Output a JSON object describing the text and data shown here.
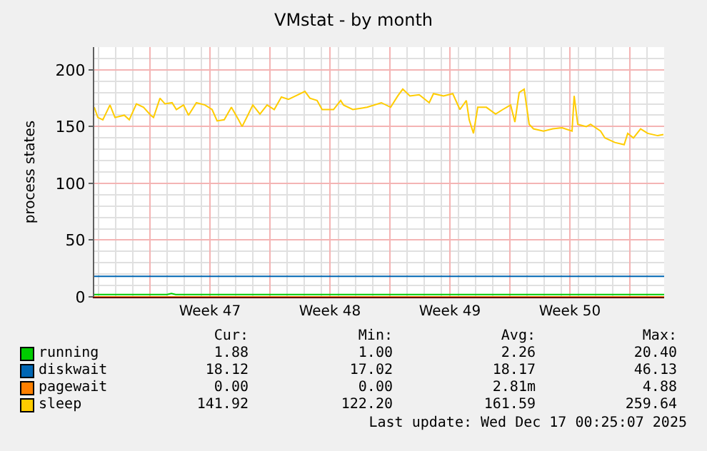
{
  "chart_data": {
    "type": "line",
    "title": "VMstat - by month",
    "ylabel": "process states",
    "xlim": [
      "2025-11-13T18:00",
      "2025-12-17T00:00"
    ],
    "xticks": [
      {
        "value": "2025-11-17",
        "label": null
      },
      {
        "value": "2025-11-20T12:00",
        "label": "Week 47"
      },
      {
        "value": "2025-11-24",
        "label": null
      },
      {
        "value": "2025-11-27T12:00",
        "label": "Week 48"
      },
      {
        "value": "2025-12-01",
        "label": null
      },
      {
        "value": "2025-12-04T12:00",
        "label": "Week 49"
      },
      {
        "value": "2025-12-08",
        "label": null
      },
      {
        "value": "2025-12-11T12:00",
        "label": "Week 50"
      },
      {
        "value": "2025-12-15",
        "label": null
      }
    ],
    "ylim": [
      0,
      220
    ],
    "yticks": [
      0,
      50,
      100,
      150,
      200
    ],
    "grid": true,
    "legend": "bottom",
    "series": [
      {
        "name": "running",
        "color": "#00cc00",
        "x": [
          "2025-11-13T18:00",
          "2025-11-18T00:00",
          "2025-11-18T06:00",
          "2025-11-18T12:00",
          "2025-12-17T00:00"
        ],
        "values": [
          2,
          2,
          3,
          2,
          2
        ]
      },
      {
        "name": "diskwait",
        "color": "#0066b3",
        "x": [
          "2025-11-13T18:00",
          "2025-12-17T00:00"
        ],
        "values": [
          18,
          18
        ]
      },
      {
        "name": "pagewait",
        "color": "#ff8000",
        "x": [
          "2025-11-13T18:00",
          "2025-12-17T00:00"
        ],
        "values": [
          0,
          0
        ]
      },
      {
        "name": "sleep",
        "color": "#ffcc00",
        "x": [
          "2025-11-13T18:00",
          "2025-11-13T23:00",
          "2025-11-14T06:00",
          "2025-11-14T16:00",
          "2025-11-14T23:00",
          "2025-11-15T12:00",
          "2025-11-15T19:00",
          "2025-11-16T05:00",
          "2025-11-16T15:00",
          "2025-11-17T01:00",
          "2025-11-17T05:00",
          "2025-11-17T14:00",
          "2025-11-17T21:00",
          "2025-11-18T07:00",
          "2025-11-18T13:00",
          "2025-11-18T23:00",
          "2025-11-19T06:00",
          "2025-11-19T17:00",
          "2025-11-20T05:00",
          "2025-11-20T15:00",
          "2025-11-20T22:00",
          "2025-11-21T08:00",
          "2025-11-21T18:00",
          "2025-11-22T04:00",
          "2025-11-22T09:00",
          "2025-11-22T17:00",
          "2025-11-23T00:00",
          "2025-11-23T10:00",
          "2025-11-23T20:00",
          "2025-11-24T06:00",
          "2025-11-24T16:00",
          "2025-11-25T02:00",
          "2025-11-25T12:00",
          "2025-11-26T01:00",
          "2025-11-26T08:00",
          "2025-11-26T18:00",
          "2025-11-27T01:00",
          "2025-11-27T17:00",
          "2025-11-28T03:00",
          "2025-11-28T07:00",
          "2025-11-28T20:00",
          "2025-11-29T16:00",
          "2025-11-30T12:00",
          "2025-12-01T01:00",
          "2025-12-01T11:00",
          "2025-12-01T18:00",
          "2025-12-02T04:00",
          "2025-12-02T17:00",
          "2025-12-03T07:00",
          "2025-12-03T13:00",
          "2025-12-04T03:00",
          "2025-12-04T16:00",
          "2025-12-05T02:00",
          "2025-12-05T11:00",
          "2025-12-05T15:00",
          "2025-12-05T21:00",
          "2025-12-06T03:00",
          "2025-12-06T15:00",
          "2025-12-07T04:00",
          "2025-12-07T14:00",
          "2025-12-08T01:00",
          "2025-12-08T07:00",
          "2025-12-08T13:00",
          "2025-12-08T20:00",
          "2025-12-09T03:00",
          "2025-12-09T09:00",
          "2025-12-09T23:00",
          "2025-12-10T12:00",
          "2025-12-11T01:00",
          "2025-12-11T15:00",
          "2025-12-11T18:00",
          "2025-12-11T23:00",
          "2025-12-12T11:00",
          "2025-12-12T17:00",
          "2025-12-13T07:00",
          "2025-12-13T13:00",
          "2025-12-14T03:00",
          "2025-12-14T16:00",
          "2025-12-14T21:00",
          "2025-12-15T05:00",
          "2025-12-15T15:00",
          "2025-12-16T01:00",
          "2025-12-16T15:00",
          "2025-12-16T23:00"
        ],
        "values": [
          167,
          158,
          156,
          169,
          158,
          160,
          156,
          170,
          167,
          160,
          158,
          175,
          170,
          171,
          165,
          169,
          160,
          171,
          169,
          165,
          155,
          156,
          167,
          156,
          150,
          160,
          169,
          161,
          169,
          165,
          176,
          174,
          177,
          181,
          175,
          173,
          165,
          165,
          173,
          169,
          165,
          167,
          171,
          167,
          177,
          183,
          177,
          178,
          171,
          179,
          177,
          179,
          165,
          173,
          156,
          144,
          167,
          167,
          161,
          165,
          169,
          154,
          180,
          183,
          152,
          148,
          146,
          148,
          149,
          146,
          177,
          152,
          150,
          152,
          146,
          140,
          136,
          134,
          144,
          140,
          148,
          144,
          142,
          143
        ]
      }
    ],
    "annotations": [
      "Cur:",
      "Min:",
      "Avg:",
      "Max:",
      "1.88",
      "1.00",
      "2.26",
      "20.40",
      "18.12",
      "17.02",
      "18.17",
      "46.13",
      "0.00",
      "0.00",
      "2.81m",
      "4.88",
      "141.92",
      "122.20",
      "161.59",
      "259.64",
      "Last update: Wed Dec 17 00:25:07 2025"
    ]
  }
}
